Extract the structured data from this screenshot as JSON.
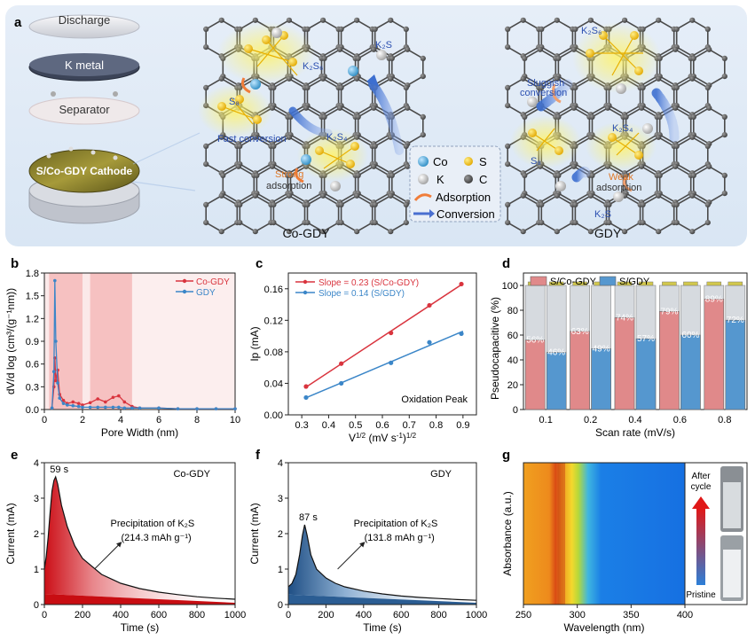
{
  "panel_labels": {
    "a": "a",
    "b": "b",
    "c": "c",
    "d": "d",
    "e": "e",
    "f": "f",
    "g": "g"
  },
  "panel_a": {
    "stack": [
      "Discharge",
      "K metal",
      "Separator",
      "S/Co-GDY Cathode"
    ],
    "cogdy_title": "Co-GDY",
    "gdy_title": "GDY",
    "cogdy_notes": {
      "k2s6": "K₂S₆",
      "k2s": "K₂S",
      "s8": "S₈",
      "fast": "Fast conversion",
      "k2s4": "K₂S₄",
      "strong1": "Strong",
      "strong2": "adsorption"
    },
    "gdy_notes": {
      "k2s6": "K₂S₆",
      "sluggish1": "Sluggish",
      "sluggish2": "conversion",
      "k2s4": "K₂S₄",
      "s8": "S₈",
      "weak1": "Weak",
      "weak2": "adsorption",
      "k2s": "K₂S"
    },
    "legend": {
      "co": "Co",
      "s": "S",
      "k": "K",
      "c": "C",
      "adsorption": "Adsorption",
      "conversion": "Conversion"
    }
  },
  "chart_data": [
    {
      "panel": "b",
      "type": "line",
      "xlabel": "Pore Width (nm)",
      "ylabel": "dV/d log (cm³/(g⁻¹nm))",
      "xlim": [
        0,
        10
      ],
      "ylim": [
        0,
        1.8
      ],
      "xticks": [
        "0",
        "2",
        "4",
        "6",
        "8",
        "10"
      ],
      "yticks": [
        "0.0",
        "0.3",
        "0.6",
        "0.9",
        "1.2",
        "1.5",
        "1.8"
      ],
      "series": [
        {
          "name": "Co-GDY",
          "color": "#d9343e",
          "x": [
            0.4,
            0.5,
            0.55,
            0.6,
            0.7,
            0.8,
            1.0,
            1.2,
            1.5,
            1.8,
            2.0,
            2.4,
            2.8,
            3.2,
            3.6,
            3.9,
            4.2,
            4.6,
            5.0,
            6.0,
            7.0,
            8.0,
            9.0,
            10.0
          ],
          "y": [
            0.02,
            0.3,
            0.68,
            0.38,
            0.52,
            0.2,
            0.12,
            0.08,
            0.1,
            0.08,
            0.06,
            0.09,
            0.14,
            0.1,
            0.16,
            0.18,
            0.1,
            0.04,
            0.02,
            0.02,
            0.01,
            0.01,
            0.01,
            0.01
          ]
        },
        {
          "name": "GDY",
          "color": "#3b86c8",
          "x": [
            0.4,
            0.5,
            0.55,
            0.6,
            0.7,
            0.8,
            1.0,
            1.2,
            1.5,
            1.8,
            2.0,
            2.4,
            2.8,
            3.2,
            3.6,
            3.9,
            4.2,
            4.6,
            5.0,
            6.0,
            7.0,
            8.0,
            9.0,
            10.0
          ],
          "y": [
            0.02,
            0.5,
            1.7,
            0.9,
            0.35,
            0.15,
            0.08,
            0.06,
            0.05,
            0.04,
            0.03,
            0.03,
            0.03,
            0.03,
            0.03,
            0.03,
            0.02,
            0.02,
            0.02,
            0.02,
            0.01,
            0.01,
            0.01,
            0.01
          ]
        }
      ]
    },
    {
      "panel": "c",
      "type": "scatter",
      "xlabel": "V^1/2 (mV s^-1)^1/2",
      "ylabel": "Ip (mA)",
      "xlim": [
        0.25,
        0.95
      ],
      "ylim": [
        0,
        0.18
      ],
      "xticks": [
        "0.3",
        "0.4",
        "0.5",
        "0.6",
        "0.7",
        "0.8",
        "0.9"
      ],
      "yticks": [
        "0.00",
        "0.04",
        "0.08",
        "0.12",
        "0.16"
      ],
      "annotation": "Oxidation Peak",
      "series": [
        {
          "name": "Slope = 0.23 (S/Co-GDY)",
          "color": "#d9343e",
          "x": [
            0.316,
            0.447,
            0.632,
            0.775,
            0.894
          ],
          "y": [
            0.036,
            0.065,
            0.104,
            0.139,
            0.166
          ]
        },
        {
          "name": "Slope = 0.14 (S/GDY)",
          "color": "#3b86c8",
          "x": [
            0.316,
            0.447,
            0.632,
            0.775,
            0.894
          ],
          "y": [
            0.022,
            0.04,
            0.066,
            0.092,
            0.103
          ]
        }
      ]
    },
    {
      "panel": "d",
      "type": "bar",
      "xlabel": "Scan rate (mV/s)",
      "ylabel": "Pseudocapacitive (%)",
      "categories": [
        "0.1",
        "0.2",
        "0.4",
        "0.6",
        "0.8"
      ],
      "ylim": [
        0,
        100
      ],
      "yticks": [
        "0",
        "20",
        "40",
        "60",
        "80",
        "100"
      ],
      "series": [
        {
          "name": "S/Co-GDY",
          "color": "#e0898a",
          "values": [
            56,
            63,
            74,
            79,
            89
          ],
          "labels": [
            "56%",
            "63%",
            "74%",
            "79%",
            "89%"
          ]
        },
        {
          "name": "S/GDY",
          "color": "#5597cf",
          "values": [
            46,
            49,
            57,
            60,
            72
          ],
          "labels": [
            "46%",
            "49%",
            "57%",
            "60%",
            "72%"
          ]
        }
      ]
    },
    {
      "panel": "e",
      "type": "area",
      "xlabel": "Time (s)",
      "ylabel": "Current (mA)",
      "xlim": [
        0,
        1000
      ],
      "ylim": [
        0,
        4
      ],
      "xticks": [
        "0",
        "200",
        "400",
        "600",
        "800",
        "1000"
      ],
      "yticks": [
        "0",
        "1",
        "2",
        "3",
        "4"
      ],
      "peak_label": "59 s",
      "sample": "Co-GDY",
      "annotation": [
        "Precipitation of K₂S",
        "(214.3 mAh g⁻¹)"
      ],
      "x": [
        0,
        10,
        20,
        30,
        40,
        50,
        59,
        70,
        90,
        120,
        160,
        200,
        300,
        400,
        500,
        600,
        700,
        800,
        900,
        1000
      ],
      "y": [
        1.0,
        1.35,
        1.9,
        2.6,
        3.2,
        3.5,
        3.6,
        3.4,
        2.8,
        2.2,
        1.65,
        1.3,
        0.85,
        0.6,
        0.45,
        0.35,
        0.28,
        0.22,
        0.18,
        0.15
      ],
      "baseline": [
        0.3,
        0.05
      ]
    },
    {
      "panel": "f",
      "type": "area",
      "xlabel": "Time (s)",
      "ylabel": "Current (mA)",
      "xlim": [
        0,
        1000
      ],
      "ylim": [
        0,
        4
      ],
      "xticks": [
        "0",
        "200",
        "400",
        "600",
        "800",
        "1000"
      ],
      "yticks": [
        "0",
        "1",
        "2",
        "3",
        "4"
      ],
      "peak_label": "87 s",
      "sample": "GDY",
      "annotation": [
        "Precipitation of K₂S",
        "(131.8 mAh g⁻¹)"
      ],
      "x": [
        0,
        20,
        40,
        60,
        75,
        87,
        100,
        120,
        150,
        200,
        250,
        300,
        400,
        500,
        600,
        700,
        800,
        900,
        1000
      ],
      "y": [
        0.5,
        0.6,
        0.85,
        1.4,
        1.95,
        2.25,
        1.95,
        1.4,
        1.0,
        0.75,
        0.6,
        0.5,
        0.38,
        0.3,
        0.24,
        0.2,
        0.17,
        0.14,
        0.12
      ],
      "baseline": [
        0.28,
        0.05
      ]
    },
    {
      "panel": "g",
      "type": "heatmap",
      "xlabel": "Wavelength (nm)",
      "ylabel": "Absorbance (a.u.)",
      "xlim": [
        250,
        400
      ],
      "xticks": [
        "250",
        "300",
        "350",
        "400"
      ],
      "labels": {
        "after": "After cycle",
        "pristine": "Pristine"
      }
    }
  ]
}
